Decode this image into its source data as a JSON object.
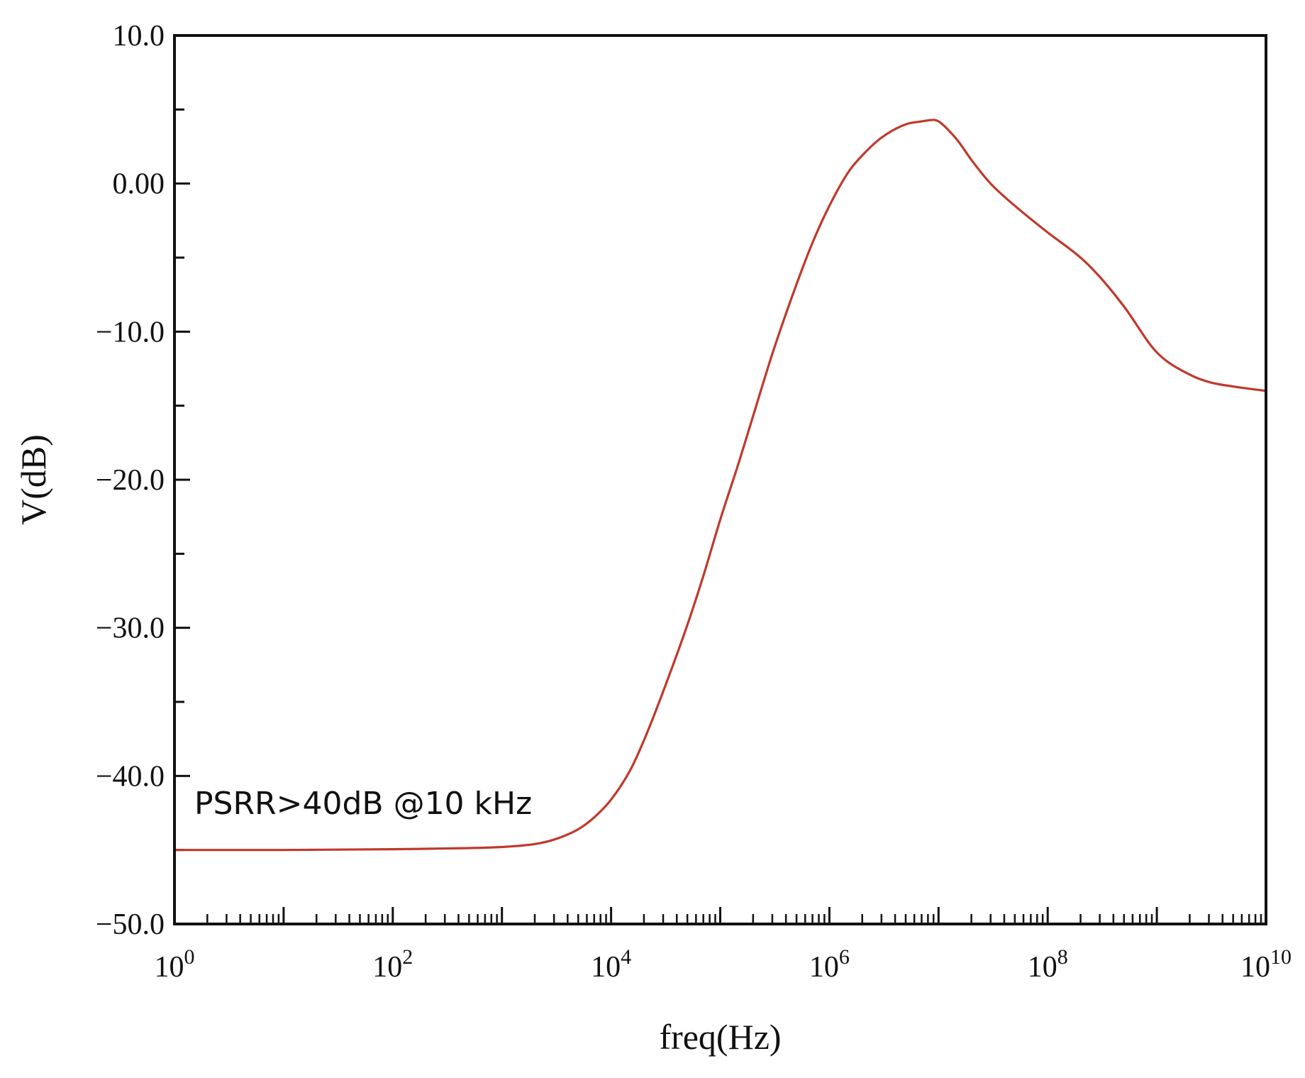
{
  "chart_data": {
    "type": "line",
    "xlabel": "freq(Hz)",
    "ylabel": "V(dB)",
    "x_scale": "log",
    "xlim": [
      1,
      10000000000
    ],
    "ylim": [
      -50,
      10
    ],
    "grid": false,
    "x_ticks": [
      {
        "value": 1,
        "base": "10",
        "exp": "0"
      },
      {
        "value": 100,
        "base": "10",
        "exp": "2"
      },
      {
        "value": 10000,
        "base": "10",
        "exp": "4"
      },
      {
        "value": 1000000,
        "base": "10",
        "exp": "6"
      },
      {
        "value": 100000000,
        "base": "10",
        "exp": "8"
      },
      {
        "value": 10000000000,
        "base": "10",
        "exp": "10"
      }
    ],
    "y_ticks": [
      {
        "value": 10,
        "label": "10.0"
      },
      {
        "value": 0,
        "label": "0.00"
      },
      {
        "value": -10,
        "label": "−10.0"
      },
      {
        "value": -20,
        "label": "−20.0"
      },
      {
        "value": -30,
        "label": "−30.0"
      },
      {
        "value": -40,
        "label": "−40.0"
      },
      {
        "value": -50,
        "label": "−50.0"
      }
    ],
    "annotations": [
      {
        "text": "PSRR>40dB @10 kHz",
        "x": 2.5,
        "y": -42.5
      }
    ],
    "series": [
      {
        "color": "#c0392b",
        "x": [
          1,
          10,
          100,
          300,
          1000,
          2000,
          3000,
          5000,
          7000,
          10000,
          15000,
          20000,
          30000,
          50000,
          70000,
          100000,
          150000,
          200000,
          300000,
          500000,
          700000,
          1000000,
          1500000,
          2000000,
          3000000,
          5000000,
          7000000,
          9000000,
          10000000,
          12000000,
          15000000,
          20000000,
          30000000,
          50000000,
          100000000,
          200000000,
          300000000,
          500000000,
          1000000000,
          2000000000,
          3000000000,
          5000000000,
          10000000000
        ],
        "y": [
          -45,
          -45,
          -44.95,
          -44.9,
          -44.8,
          -44.6,
          -44.3,
          -43.6,
          -42.8,
          -41.6,
          -39.6,
          -37.6,
          -34.3,
          -29.8,
          -26.5,
          -22.7,
          -18.7,
          -15.7,
          -11.5,
          -6.8,
          -4.0,
          -1.5,
          0.8,
          1.9,
          3.1,
          4.0,
          4.2,
          4.3,
          4.2,
          3.7,
          2.9,
          1.6,
          0.0,
          -1.5,
          -3.3,
          -5.0,
          -6.3,
          -8.3,
          -11.4,
          -12.9,
          -13.4,
          -13.7,
          -14.0
        ]
      }
    ]
  }
}
